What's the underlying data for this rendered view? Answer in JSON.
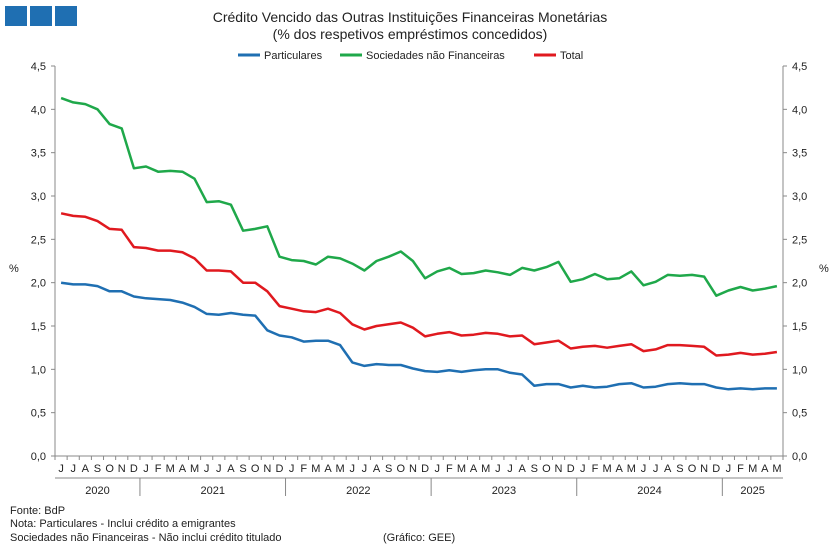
{
  "header": {
    "title": "Crédito Vencido das Outras Instituições Financeiras Monetárias",
    "subtitle": "(% dos respetivos empréstimos concedidos)",
    "logo_color": "#1f6fb2"
  },
  "footer": {
    "source": "Fonte: BdP",
    "note1": "Nota: Particulares - Inclui crédito a emigrantes",
    "note2": "Sociedades não Financeiras - Não inclui crédito titulado",
    "credit": "(Gráfico: GEE)"
  },
  "chart_data": {
    "type": "line",
    "ylabel_left": "%",
    "ylabel_right": "%",
    "ylim": [
      0,
      4.5
    ],
    "yticks": [
      "0,0",
      "0,5",
      "1,0",
      "1,5",
      "2,0",
      "2,5",
      "3,0",
      "3,5",
      "4,0",
      "4,5"
    ],
    "grid": false,
    "legend_position": "top",
    "month_labels": [
      "J",
      "J",
      "A",
      "S",
      "O",
      "N",
      "D",
      "J",
      "F",
      "M",
      "A",
      "M",
      "J",
      "J",
      "A",
      "S",
      "O",
      "N",
      "D",
      "J",
      "F",
      "M",
      "A",
      "M",
      "J",
      "J",
      "A",
      "S",
      "O",
      "N",
      "D",
      "J",
      "F",
      "M",
      "A",
      "M",
      "J",
      "J",
      "A",
      "S",
      "O",
      "N",
      "D",
      "J",
      "F",
      "M",
      "A",
      "M",
      "J",
      "J",
      "A",
      "S",
      "O",
      "N",
      "D",
      "J",
      "F",
      "M",
      "A",
      "M"
    ],
    "years": [
      {
        "label": "2020",
        "start": 0,
        "end": 7
      },
      {
        "label": "2021",
        "start": 7,
        "end": 19
      },
      {
        "label": "2022",
        "start": 19,
        "end": 31
      },
      {
        "label": "2023",
        "start": 31,
        "end": 43
      },
      {
        "label": "2024",
        "start": 43,
        "end": 55
      },
      {
        "label": "2025",
        "start": 55,
        "end": 60
      }
    ],
    "series": [
      {
        "name": "Particulares",
        "color": "#1f6fb2",
        "values": [
          2.0,
          1.98,
          1.98,
          1.96,
          1.9,
          1.9,
          1.84,
          1.82,
          1.81,
          1.8,
          1.77,
          1.72,
          1.64,
          1.63,
          1.65,
          1.63,
          1.62,
          1.45,
          1.39,
          1.37,
          1.32,
          1.33,
          1.33,
          1.28,
          1.08,
          1.04,
          1.06,
          1.05,
          1.05,
          1.01,
          0.98,
          0.97,
          0.99,
          0.97,
          0.99,
          1.0,
          1.0,
          0.96,
          0.94,
          0.81,
          0.83,
          0.83,
          0.79,
          0.81,
          0.79,
          0.8,
          0.83,
          0.84,
          0.79,
          0.8,
          0.83,
          0.84,
          0.83,
          0.83,
          0.79,
          0.77,
          0.78,
          0.77,
          0.78,
          0.78
        ]
      },
      {
        "name": "Sociedades não Financeiras",
        "color": "#1fa84a",
        "values": [
          4.13,
          4.08,
          4.06,
          4.0,
          3.83,
          3.78,
          3.32,
          3.34,
          3.28,
          3.29,
          3.28,
          3.2,
          2.93,
          2.94,
          2.9,
          2.6,
          2.62,
          2.65,
          2.3,
          2.26,
          2.25,
          2.21,
          2.3,
          2.28,
          2.22,
          2.14,
          2.25,
          2.3,
          2.36,
          2.25,
          2.05,
          2.13,
          2.17,
          2.1,
          2.11,
          2.14,
          2.12,
          2.09,
          2.17,
          2.14,
          2.18,
          2.24,
          2.01,
          2.04,
          2.1,
          2.04,
          2.05,
          2.13,
          1.97,
          2.01,
          2.09,
          2.08,
          2.09,
          2.07,
          1.85,
          1.91,
          1.95,
          1.91,
          1.93,
          1.96
        ]
      },
      {
        "name": "Total",
        "color": "#e0191f",
        "values": [
          2.8,
          2.77,
          2.76,
          2.71,
          2.62,
          2.61,
          2.41,
          2.4,
          2.37,
          2.37,
          2.35,
          2.28,
          2.14,
          2.14,
          2.13,
          2.0,
          2.0,
          1.9,
          1.73,
          1.7,
          1.67,
          1.66,
          1.7,
          1.65,
          1.52,
          1.46,
          1.5,
          1.52,
          1.54,
          1.48,
          1.38,
          1.41,
          1.43,
          1.39,
          1.4,
          1.42,
          1.41,
          1.38,
          1.39,
          1.29,
          1.31,
          1.33,
          1.24,
          1.26,
          1.27,
          1.25,
          1.27,
          1.29,
          1.21,
          1.23,
          1.28,
          1.28,
          1.27,
          1.26,
          1.16,
          1.17,
          1.19,
          1.17,
          1.18,
          1.2
        ]
      }
    ]
  }
}
